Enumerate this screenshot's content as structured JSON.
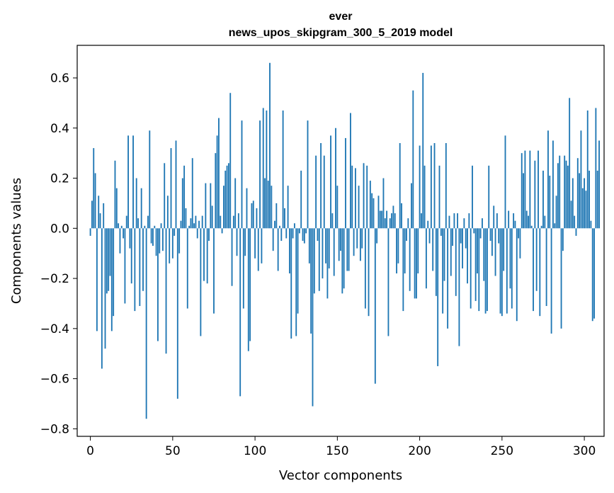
{
  "chart_data": {
    "type": "bar",
    "title": "ever",
    "subtitle": "news_upos_skipgram_300_5_2019 model",
    "xlabel": "Vector components",
    "ylabel": "Components values",
    "xlim": [
      -8,
      312
    ],
    "ylim": [
      -0.83,
      0.73
    ],
    "xticks": [
      0,
      50,
      100,
      150,
      200,
      250,
      300
    ],
    "xtick_labels": [
      "0",
      "50",
      "100",
      "150",
      "200",
      "250",
      "300"
    ],
    "yticks": [
      -0.8,
      -0.6,
      -0.4,
      -0.2,
      0.0,
      0.2,
      0.4,
      0.6
    ],
    "ytick_labels": [
      "−0.8",
      "−0.6",
      "−0.4",
      "−0.2",
      "0.0",
      "0.2",
      "0.4",
      "0.6"
    ],
    "bar_color": "#1f77b4",
    "grid": false,
    "values": [
      -0.03,
      0.11,
      0.32,
      0.22,
      -0.41,
      0.13,
      0.06,
      -0.56,
      0.1,
      -0.48,
      -0.26,
      -0.25,
      -0.19,
      -0.41,
      -0.35,
      0.27,
      0.16,
      0.02,
      -0.1,
      0.01,
      -0.04,
      -0.3,
      0.05,
      0.37,
      -0.08,
      -0.22,
      0.37,
      -0.33,
      0.2,
      0.04,
      -0.31,
      0.16,
      -0.25,
      0.01,
      -0.76,
      0.05,
      0.39,
      -0.06,
      -0.07,
      0.01,
      -0.11,
      -0.45,
      -0.1,
      0.02,
      -0.09,
      0.26,
      -0.5,
      0.13,
      -0.14,
      0.32,
      -0.12,
      -0.03,
      0.35,
      -0.68,
      -0.1,
      0.03,
      0.2,
      0.25,
      0.08,
      -0.32,
      0.01,
      0.04,
      0.28,
      0.02,
      0.05,
      -0.04,
      0.03,
      -0.43,
      0.05,
      -0.21,
      0.18,
      -0.22,
      -0.05,
      0.18,
      0.09,
      -0.34,
      0.3,
      0.37,
      0.44,
      0.05,
      -0.02,
      0.17,
      0.23,
      0.25,
      0.26,
      0.54,
      -0.23,
      0.05,
      0.2,
      -0.11,
      0.06,
      -0.67,
      0.43,
      -0.32,
      -0.11,
      0.16,
      -0.49,
      -0.45,
      0.1,
      0.11,
      -0.12,
      0.08,
      -0.17,
      0.43,
      -0.14,
      0.48,
      0.2,
      0.47,
      0.19,
      0.66,
      0.17,
      -0.09,
      0.03,
      0.1,
      -0.17,
      0.01,
      -0.05,
      0.47,
      0.08,
      -0.04,
      0.17,
      -0.18,
      -0.44,
      -0.04,
      0.02,
      -0.43,
      -0.34,
      -0.02,
      0.23,
      -0.05,
      -0.06,
      -0.02,
      0.43,
      -0.14,
      -0.42,
      -0.71,
      -0.26,
      0.29,
      -0.05,
      -0.25,
      0.34,
      -0.2,
      0.29,
      -0.14,
      -0.28,
      -0.16,
      0.37,
      0.06,
      -0.19,
      0.4,
      0.17,
      -0.13,
      -0.09,
      -0.26,
      -0.24,
      0.36,
      -0.17,
      -0.17,
      0.46,
      0.25,
      -0.11,
      0.24,
      -0.08,
      0.17,
      -0.13,
      -0.08,
      0.26,
      -0.32,
      0.25,
      -0.35,
      0.19,
      0.14,
      0.12,
      -0.62,
      -0.06,
      0.13,
      0.07,
      0.07,
      0.2,
      0.04,
      0.07,
      -0.43,
      0.04,
      0.06,
      0.09,
      0.06,
      -0.18,
      -0.14,
      0.34,
      0.1,
      -0.33,
      -0.18,
      -0.05,
      0.04,
      -0.25,
      0.18,
      0.55,
      -0.28,
      -0.28,
      -0.18,
      0.33,
      0.06,
      0.62,
      0.25,
      -0.24,
      0.03,
      -0.06,
      0.33,
      -0.17,
      0.34,
      -0.27,
      -0.55,
      0.25,
      -0.03,
      -0.34,
      -0.21,
      0.34,
      -0.4,
      0.05,
      -0.19,
      -0.07,
      0.06,
      -0.27,
      0.06,
      -0.47,
      -0.06,
      -0.16,
      0.04,
      -0.08,
      -0.22,
      0.06,
      -0.32,
      0.25,
      -0.02,
      -0.29,
      -0.18,
      -0.33,
      -0.04,
      0.04,
      -0.21,
      -0.34,
      -0.33,
      0.25,
      -0.05,
      -0.11,
      0.09,
      -0.19,
      0.06,
      -0.06,
      -0.34,
      -0.35,
      -0.17,
      0.37,
      -0.34,
      0.07,
      -0.24,
      -0.32,
      0.06,
      0.03,
      -0.37,
      -0.04,
      -0.12,
      0.3,
      0.22,
      0.31,
      0.07,
      0.05,
      0.31,
      0.01,
      -0.33,
      0.27,
      -0.25,
      0.31,
      -0.35,
      0.01,
      0.23,
      0.05,
      -0.31,
      0.39,
      0.21,
      -0.42,
      0.35,
      0.02,
      0.13,
      0.26,
      0.29,
      -0.4,
      -0.09,
      0.29,
      0.27,
      0.25,
      0.52,
      0.11,
      0.2,
      0.05,
      -0.03,
      0.28,
      0.22,
      0.39,
      0.16,
      0.2,
      0.15,
      0.47,
      0.23,
      0.03,
      -0.37,
      -0.36,
      0.48,
      0.23,
      0.35
    ]
  }
}
